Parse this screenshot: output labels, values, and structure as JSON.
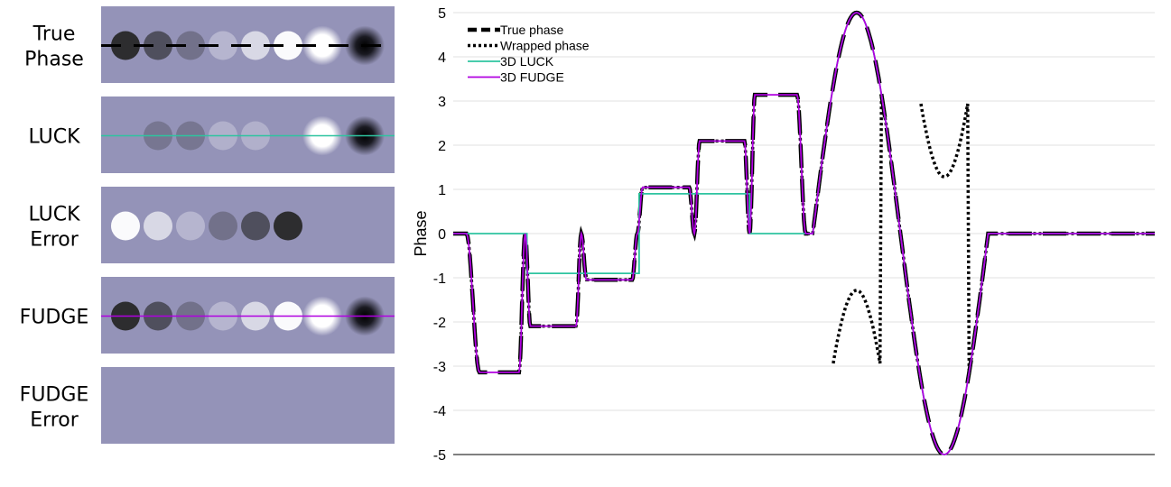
{
  "panels": [
    {
      "label": [
        "True",
        "Phase"
      ],
      "line": "true",
      "dots": [
        -3.1416,
        -2.0944,
        -1.0472,
        1.0472,
        2.0944,
        3.1416,
        5,
        -5
      ]
    },
    {
      "label": [
        "LUCK"
      ],
      "line": "luck",
      "dots": [
        0,
        -0.9,
        -0.9,
        0.9,
        0.9,
        0,
        5,
        -5
      ]
    },
    {
      "label": [
        "LUCK",
        "Error"
      ],
      "line": "none",
      "dots": [
        3.1416,
        2.0944,
        1.0472,
        -1.0472,
        -2.0944,
        -3.1416,
        0,
        0
      ]
    },
    {
      "label": [
        "FUDGE"
      ],
      "line": "fudge",
      "dots": [
        -3.1416,
        -2.0944,
        -1.0472,
        1.0472,
        2.0944,
        3.1416,
        5,
        -5
      ]
    },
    {
      "label": [
        "FUDGE",
        "Error"
      ],
      "line": "none",
      "dots": [
        0,
        0,
        0,
        0,
        0,
        0,
        0,
        0
      ]
    }
  ],
  "chart_data": {
    "type": "line",
    "ylabel": "Phase",
    "ylim": [
      -5,
      5
    ],
    "yticks": [
      "-5",
      "-4",
      "-3",
      "-2",
      "-1",
      "0",
      "1",
      "2",
      "3",
      "4",
      "5"
    ],
    "grid": "horizontal",
    "legend_position": "top-left",
    "xlim": [
      0,
      80
    ],
    "series": [
      {
        "name": "True phase",
        "style": "dashed",
        "color": "#000000"
      },
      {
        "name": "Wrapped phase",
        "style": "dotted",
        "color": "#000000"
      },
      {
        "name": "3D LUCK",
        "style": "solid",
        "color": "#2ec4a0"
      },
      {
        "name": "3D FUDGE",
        "style": "solid",
        "color": "#b000e0"
      }
    ],
    "step_levels_true": [
      -3.1416,
      -2.0944,
      -1.0472,
      1.0472,
      2.0944,
      3.1416
    ],
    "step_levels_luck": [
      0,
      -0.9,
      -0.9,
      0.9,
      0.9,
      0
    ],
    "peak_value": 5,
    "trough_value": -5
  },
  "colors": {
    "panel_bg": "#9493b8",
    "luck": "#2ec4a0",
    "fudge": "#b000e0",
    "grid": "#e0e0e0"
  }
}
